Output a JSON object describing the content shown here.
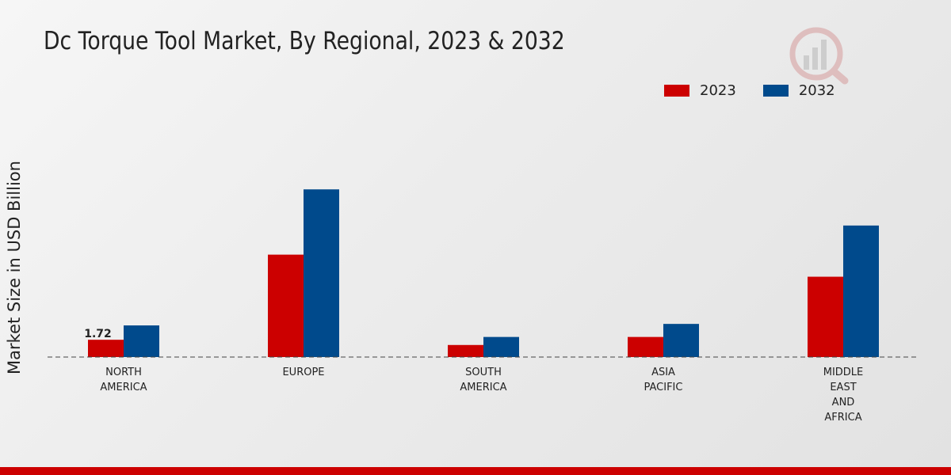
{
  "chart_data": {
    "type": "bar",
    "title": "Dc Torque Tool Market, By Regional, 2023 & 2032",
    "xlabel": "",
    "ylabel": "Market Size in USD Billion",
    "categories": [
      [
        "NORTH",
        "AMERICA"
      ],
      [
        "EUROPE"
      ],
      [
        "SOUTH",
        "AMERICA"
      ],
      [
        "ASIA",
        "PACIFIC"
      ],
      [
        "MIDDLE",
        "EAST",
        "AND",
        "AFRICA"
      ]
    ],
    "series": [
      {
        "name": "2023",
        "color": "#cc0000",
        "values": [
          1.72,
          10.2,
          1.2,
          2.0,
          8.0
        ]
      },
      {
        "name": "2032",
        "color": "#004a8c",
        "values": [
          3.15,
          16.7,
          2.0,
          3.3,
          13.1
        ]
      }
    ],
    "data_labels": [
      {
        "series": 0,
        "index": 0,
        "text": "1.72"
      }
    ],
    "ylim": [
      0,
      22
    ],
    "grid": false,
    "legend_position": "top-right"
  },
  "colors": {
    "accent_2023": "#cc0000",
    "accent_2032": "#004a8c",
    "footer_bar": "#cc0000"
  },
  "icons": {
    "logo": "market-research-logo-icon"
  }
}
